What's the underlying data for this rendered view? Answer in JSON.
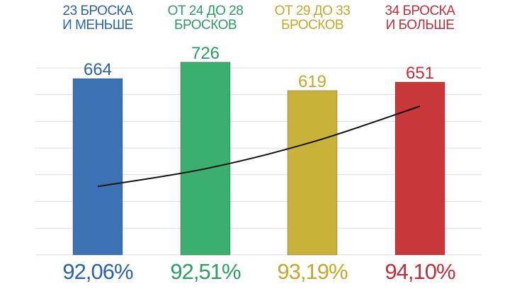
{
  "colors": {
    "blue": "#3c72b3",
    "green": "#3aaf6f",
    "yellow": "#c8b23a",
    "red": "#c8373a",
    "title_blue": "#2a64a8",
    "title_green": "#2f9c63",
    "title_yellow": "#c2a82c",
    "title_red": "#c0303a",
    "grid": "#dddddd",
    "line": "#111111"
  },
  "chart_data": {
    "type": "bar",
    "categories": [
      [
        "23 БРОСКА",
        "И МЕНЬШЕ"
      ],
      [
        "ОТ 24 ДО 28",
        "БРОСКОВ"
      ],
      [
        "ОТ 29 ДО 33",
        "БРОСКОВ"
      ],
      [
        "34 БРОСКА",
        "И БОЛЬШЕ"
      ]
    ],
    "values": [
      664,
      726,
      619,
      651
    ],
    "value_labels": [
      "664",
      "726",
      "619",
      "651"
    ],
    "line_values": [
      92.06,
      92.51,
      93.19,
      94.1
    ],
    "line_labels": [
      "92,06%",
      "92,51%",
      "93,19%",
      "94,10%"
    ],
    "ylim": [
      0,
      800
    ],
    "grid": true
  }
}
